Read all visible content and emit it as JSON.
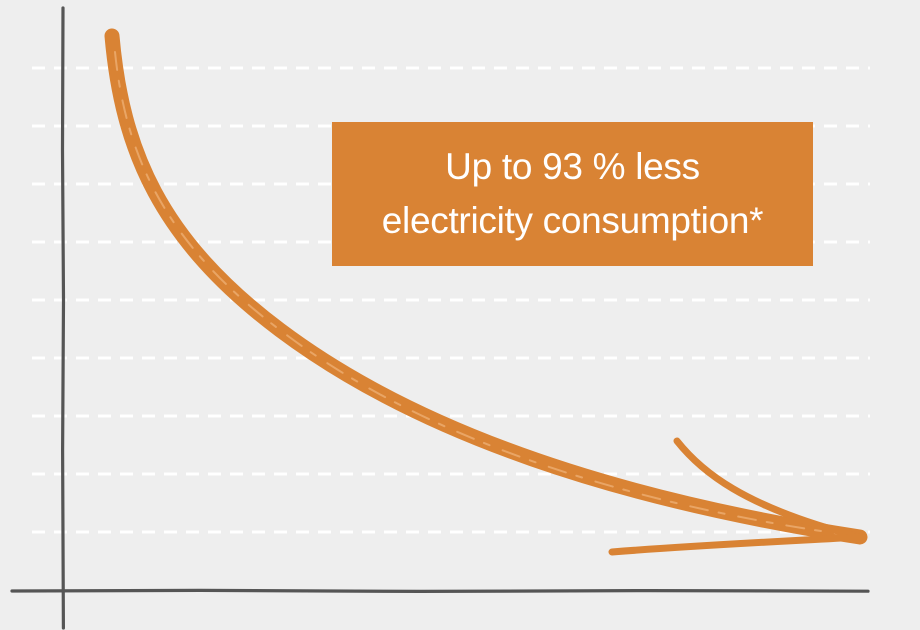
{
  "colors": {
    "background": "#eeeeee",
    "axis": "#555555",
    "grid": "#ffffff",
    "accent": "#d98334",
    "callout_text": "#ffffff"
  },
  "chart_data": {
    "type": "line",
    "title": "",
    "xlabel": "",
    "ylabel": "",
    "grid": true,
    "gridline_count": 9,
    "legend": "none",
    "trend": "decreasing",
    "annotation": {
      "lines": [
        "Up to 93 % less",
        "electricity consumption*"
      ],
      "placement": "top-right"
    }
  }
}
